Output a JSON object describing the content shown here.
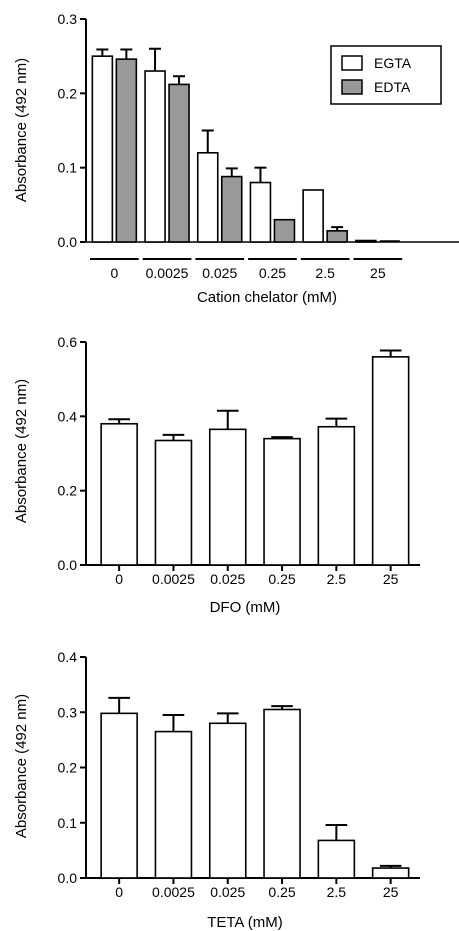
{
  "chart_data": [
    {
      "type": "bar",
      "ylabel": "Absorbance (492 nm)",
      "xlabel": "Cation chelator (mM)",
      "categories": [
        "0",
        "0.0025",
        "0.025",
        "0.25",
        "2.5",
        "25"
      ],
      "ylim": [
        0,
        0.3
      ],
      "yticks": [
        "0.0",
        "0.1",
        "0.2",
        "0.3"
      ],
      "group_underlines": true,
      "legend_position": "top-right",
      "series": [
        {
          "name": "EGTA",
          "color": "#ffffff",
          "values": [
            0.25,
            0.23,
            0.12,
            0.08,
            0.07,
            0.002
          ],
          "errors": [
            0.009,
            0.03,
            0.03,
            0.02,
            0.0,
            0.0
          ]
        },
        {
          "name": "EDTA",
          "color": "#999999",
          "values": [
            0.246,
            0.212,
            0.088,
            0.03,
            0.015,
            0.0
          ],
          "errors": [
            0.013,
            0.011,
            0.011,
            0.0,
            0.005,
            0.0
          ]
        }
      ]
    },
    {
      "type": "bar",
      "ylabel": "Absorbance (492 nm)",
      "xlabel": "DFO (mM)",
      "categories": [
        "0",
        "0.0025",
        "0.025",
        "0.25",
        "2.5",
        "25"
      ],
      "ylim": [
        0,
        0.6
      ],
      "yticks": [
        "0.0",
        "0.2",
        "0.4",
        "0.6"
      ],
      "series": [
        {
          "color": "#ffffff",
          "values": [
            0.38,
            0.335,
            0.365,
            0.34,
            0.372,
            0.56
          ],
          "errors": [
            0.012,
            0.015,
            0.05,
            0.004,
            0.022,
            0.017
          ]
        }
      ]
    },
    {
      "type": "bar",
      "ylabel": "Absorbance (492 nm)",
      "xlabel": "TETA (mM)",
      "categories": [
        "0",
        "0.0025",
        "0.025",
        "0.25",
        "2.5",
        "25"
      ],
      "ylim": [
        0,
        0.4
      ],
      "yticks": [
        "0.0",
        "0.1",
        "0.2",
        "0.3",
        "0.4"
      ],
      "series": [
        {
          "color": "#ffffff",
          "values": [
            0.298,
            0.265,
            0.28,
            0.305,
            0.068,
            0.018
          ],
          "errors": [
            0.028,
            0.03,
            0.018,
            0.006,
            0.028,
            0.004
          ]
        }
      ]
    }
  ]
}
